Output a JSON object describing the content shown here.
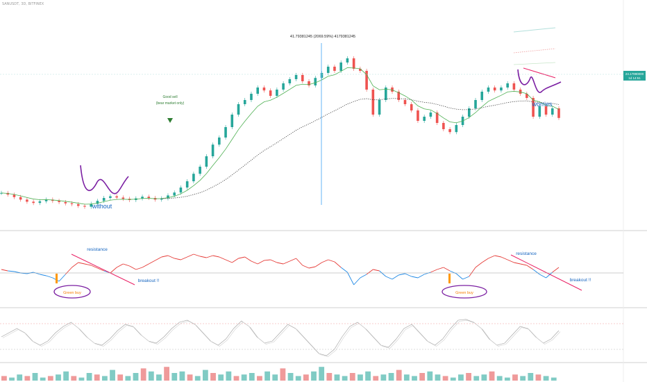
{
  "header": {
    "symbol_line": "SANUSDT, 3D, BITFINEX"
  },
  "colors": {
    "up": "#26a69a",
    "down": "#ef5350",
    "ema_fast": "#4caf50",
    "ema_fill_up": "#c8e6c9",
    "ema_fill_down": "#ffcdd2",
    "annotation_blue": "#1565c0",
    "annotation_purple": "#7b1fa2",
    "annotation_red": "#e91e63",
    "annotation_orange": "#ff9800",
    "rsi_up": "#e53935",
    "rsi_down": "#1e88e5",
    "price_badge": "#26a69a"
  },
  "price_badge": {
    "price": "24.17990000",
    "countdown": "1d 14:51"
  },
  "measure_label": "41.79381245 (2069.59%) 4179381245",
  "annotations": {
    "good_sell": "Good sell",
    "bear_market": "(bear market only)",
    "without": "without",
    "worries": "worries",
    "resistance_left": "resistance",
    "resistance_right": "resistance",
    "breakout_left": "breakout !!",
    "breakout_right": "breakout !!",
    "green_buy_left": "Green buy",
    "green_buy_right": "Green buy"
  },
  "chart_data": {
    "type": "line",
    "title": "",
    "xlabel": "",
    "ylabel": "",
    "series": [
      {
        "values": [
          6.2,
          5.8,
          5.2,
          4.6,
          4.1,
          3.8,
          4.2,
          4.6,
          4.3,
          4.0,
          3.7,
          3.5,
          3.1,
          2.9,
          3.6,
          4.3,
          5.0,
          5.4,
          5.1,
          4.8,
          4.5,
          4.9,
          5.3,
          5.0,
          4.6,
          4.9,
          5.6,
          6.3,
          7.5,
          9.0,
          10.8,
          12.5,
          15.0,
          17.8,
          19.5,
          22.0,
          25.0,
          27.5,
          28.5,
          30.0,
          31.5,
          30.8,
          29.5,
          31.0,
          32.5,
          33.5,
          34.5,
          33.0,
          32.0,
          33.8,
          35.0,
          36.5,
          35.5,
          37.5,
          38.5,
          36.0,
          35.5,
          31.0,
          25.0,
          28.5,
          31.5,
          30.5,
          28.5,
          27.5,
          26.0,
          23.5,
          24.5,
          25.5,
          23.0,
          21.5,
          20.8,
          22.5,
          24.5,
          26.5,
          28.5,
          30.5,
          31.5,
          30.8,
          31.5,
          32.5,
          31.0,
          30.0,
          29.0,
          24.5,
          27.0,
          25.0,
          26.5,
          24.2
        ],
        "description_free": true
      }
    ],
    "ylim": [
      0,
      45
    ],
    "grid": false,
    "legend": "none"
  },
  "rsi_data": {
    "values": [
      52,
      50,
      49,
      47,
      46,
      48,
      45,
      43,
      40,
      35,
      45,
      55,
      62,
      60,
      58,
      54,
      50,
      47,
      55,
      60,
      57,
      52,
      55,
      60,
      65,
      70,
      72,
      68,
      66,
      70,
      74,
      71,
      69,
      72,
      70,
      66,
      62,
      68,
      70,
      64,
      60,
      65,
      66,
      62,
      60,
      64,
      68,
      58,
      54,
      56,
      62,
      66,
      63,
      55,
      48,
      30,
      40,
      45,
      52,
      50,
      42,
      38,
      44,
      46,
      42,
      40,
      45,
      48,
      52,
      55,
      50,
      46,
      38,
      42,
      55,
      62,
      68,
      72,
      70,
      66,
      62,
      60,
      58,
      52,
      45,
      40,
      48,
      55
    ]
  },
  "stoch_data": {
    "values": [
      50,
      60,
      70,
      60,
      40,
      30,
      40,
      60,
      75,
      85,
      70,
      50,
      35,
      30,
      45,
      65,
      80,
      75,
      55,
      40,
      35,
      50,
      70,
      85,
      90,
      80,
      60,
      40,
      30,
      45,
      70,
      88,
      75,
      50,
      35,
      40,
      60,
      80,
      70,
      50,
      30,
      10,
      5,
      20,
      50,
      75,
      85,
      70,
      50,
      30,
      25,
      45,
      70,
      80,
      60,
      40,
      30,
      45,
      70,
      90,
      92,
      85,
      70,
      45,
      30,
      35,
      55,
      75,
      70,
      50,
      35,
      45,
      65
    ]
  },
  "volume_data": {
    "values": [
      3,
      2,
      4,
      3,
      5,
      2,
      3,
      4,
      6,
      3,
      2,
      5,
      4,
      3,
      7,
      4,
      3,
      5,
      8,
      6,
      4,
      9,
      5,
      6,
      4,
      3,
      7,
      5,
      4,
      6,
      3,
      4,
      5,
      3,
      6,
      4,
      8,
      5,
      3,
      4,
      6,
      9,
      5,
      4,
      3,
      5,
      4,
      6,
      3,
      4,
      5,
      7,
      4,
      3,
      5,
      6,
      4,
      3,
      2,
      4,
      5,
      3,
      4,
      6,
      3,
      2,
      4,
      3,
      5,
      4,
      3,
      2
    ]
  }
}
